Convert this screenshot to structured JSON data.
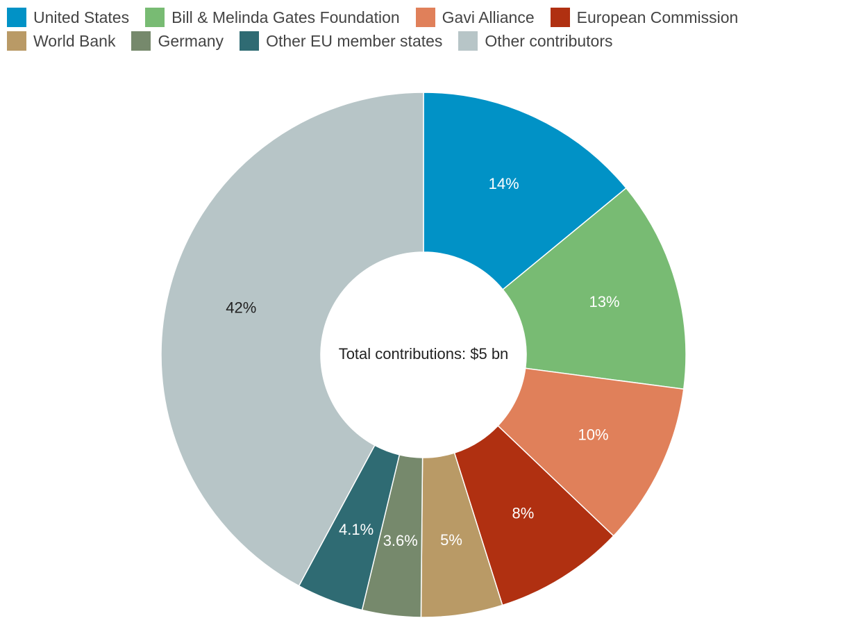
{
  "chart_data": {
    "type": "pie",
    "center_label": "Total contributions: $5 bn",
    "series": [
      {
        "name": "United States",
        "value": 14,
        "label": "14%",
        "color": "#0192c6",
        "label_color": "#ffffff"
      },
      {
        "name": "Bill & Melinda Gates Foundation",
        "value": 13,
        "label": "13%",
        "color": "#78bb73",
        "label_color": "#ffffff"
      },
      {
        "name": "Gavi Alliance",
        "value": 10,
        "label": "10%",
        "color": "#e0805a",
        "label_color": "#ffffff"
      },
      {
        "name": "European Commission",
        "value": 8,
        "label": "8%",
        "color": "#b03011",
        "label_color": "#ffffff"
      },
      {
        "name": "World Bank",
        "value": 5,
        "label": "5%",
        "color": "#b99a66",
        "label_color": "#ffffff"
      },
      {
        "name": "Germany",
        "value": 3.6,
        "label": "3.6%",
        "color": "#76896c",
        "label_color": "#ffffff"
      },
      {
        "name": "Other EU member states",
        "value": 4.1,
        "label": "4.1%",
        "color": "#2f6b73",
        "label_color": "#ffffff"
      },
      {
        "name": "Other contributors",
        "value": 42,
        "label": "42%",
        "color": "#b7c5c7",
        "label_color": "#222222"
      }
    ],
    "legend_position": "top-left"
  }
}
